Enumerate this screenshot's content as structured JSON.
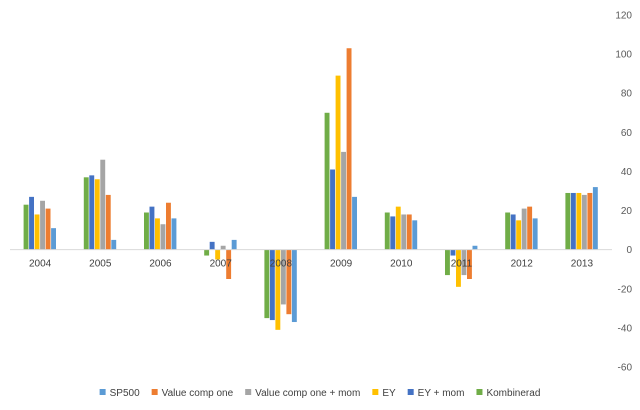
{
  "chart_data": {
    "type": "bar",
    "categories": [
      "2004",
      "2005",
      "2006",
      "2007",
      "2008",
      "2009",
      "2010",
      "2011",
      "2012",
      "2013"
    ],
    "series": [
      {
        "name": "Kombinerad",
        "color": "#70AD47",
        "values": [
          23,
          37,
          19,
          -3,
          -35,
          70,
          19,
          -13,
          19,
          29
        ]
      },
      {
        "name": "EY + mom",
        "color": "#4472C4",
        "values": [
          27,
          38,
          22,
          4,
          -36,
          41,
          17,
          -3,
          18,
          29
        ]
      },
      {
        "name": "EY",
        "color": "#FFC000",
        "values": [
          18,
          36,
          16,
          -5,
          -41,
          89,
          22,
          -19,
          15,
          29
        ]
      },
      {
        "name": "Value comp one + mom",
        "color": "#A5A5A5",
        "values": [
          25,
          46,
          13,
          2,
          -28,
          50,
          18,
          -13,
          21,
          28
        ]
      },
      {
        "name": "Value comp one",
        "color": "#ED7D31",
        "values": [
          21,
          28,
          24,
          -15,
          -33,
          103,
          18,
          -15,
          22,
          29
        ]
      },
      {
        "name": "SP500",
        "color": "#5B9BD5",
        "values": [
          11,
          5,
          16,
          5,
          -37,
          27,
          15,
          2,
          16,
          32
        ]
      }
    ],
    "legend_order": [
      "SP500",
      "Value comp one",
      "Value comp one + mom",
      "EY",
      "EY + mom",
      "Kombinerad"
    ],
    "ylim": [
      -60,
      120
    ],
    "yticks": [
      -60,
      -40,
      -20,
      0,
      20,
      40,
      60,
      80,
      100,
      120
    ],
    "y_axis_position": "right",
    "grid": false,
    "legend_position": "bottom",
    "title": "",
    "xlabel": "",
    "ylabel": ""
  }
}
